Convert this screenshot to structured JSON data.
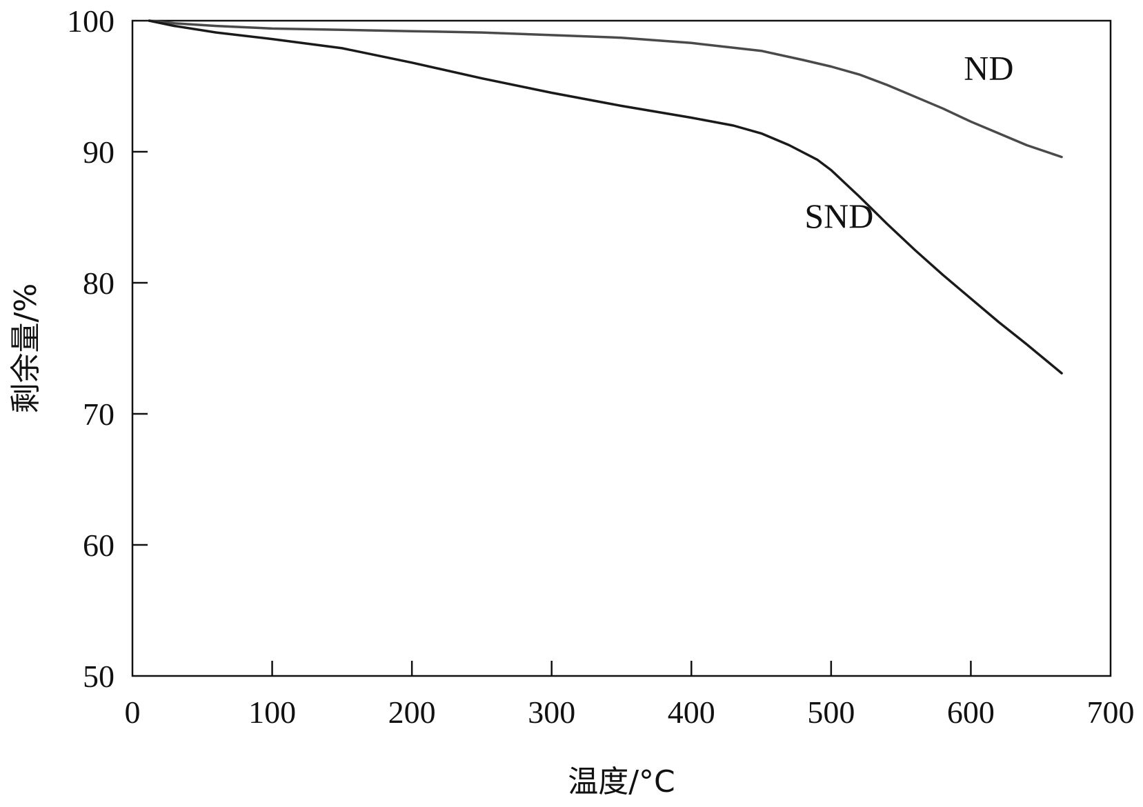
{
  "chart_data": {
    "type": "line",
    "title": "",
    "xlabel": "温度/°C",
    "ylabel": "剩余量/%",
    "xlim": [
      0,
      700
    ],
    "ylim": [
      50,
      100
    ],
    "xticks": [
      "0",
      "100",
      "200",
      "300",
      "400",
      "500",
      "600",
      "700"
    ],
    "yticks": [
      "50",
      "60",
      "70",
      "80",
      "90",
      "100"
    ],
    "grid": false,
    "legend": "none",
    "series": [
      {
        "name": "ND",
        "color": "#4a4a4a",
        "x": [
          12,
          30,
          60,
          100,
          150,
          200,
          250,
          300,
          350,
          400,
          450,
          480,
          500,
          520,
          540,
          560,
          580,
          600,
          620,
          640,
          665
        ],
        "y": [
          100,
          99.8,
          99.6,
          99.4,
          99.3,
          99.2,
          99.1,
          98.9,
          98.7,
          98.3,
          97.7,
          97.0,
          96.5,
          95.9,
          95.1,
          94.2,
          93.3,
          92.3,
          91.4,
          90.5,
          89.6
        ]
      },
      {
        "name": "SND",
        "color": "#1a1a1a",
        "x": [
          12,
          30,
          60,
          100,
          150,
          200,
          250,
          300,
          350,
          400,
          430,
          450,
          470,
          490,
          500,
          510,
          520,
          540,
          560,
          580,
          600,
          620,
          640,
          665
        ],
        "y": [
          100,
          99.6,
          99.1,
          98.6,
          97.9,
          96.8,
          95.6,
          94.5,
          93.5,
          92.6,
          92.0,
          91.4,
          90.5,
          89.4,
          88.6,
          87.6,
          86.6,
          84.5,
          82.5,
          80.6,
          78.8,
          77.0,
          75.3,
          73.1
        ]
      }
    ],
    "annotations": [
      {
        "text": "ND",
        "x": 595,
        "y": 95.5
      },
      {
        "text": "SND",
        "x": 481,
        "y": 84.2
      }
    ]
  }
}
